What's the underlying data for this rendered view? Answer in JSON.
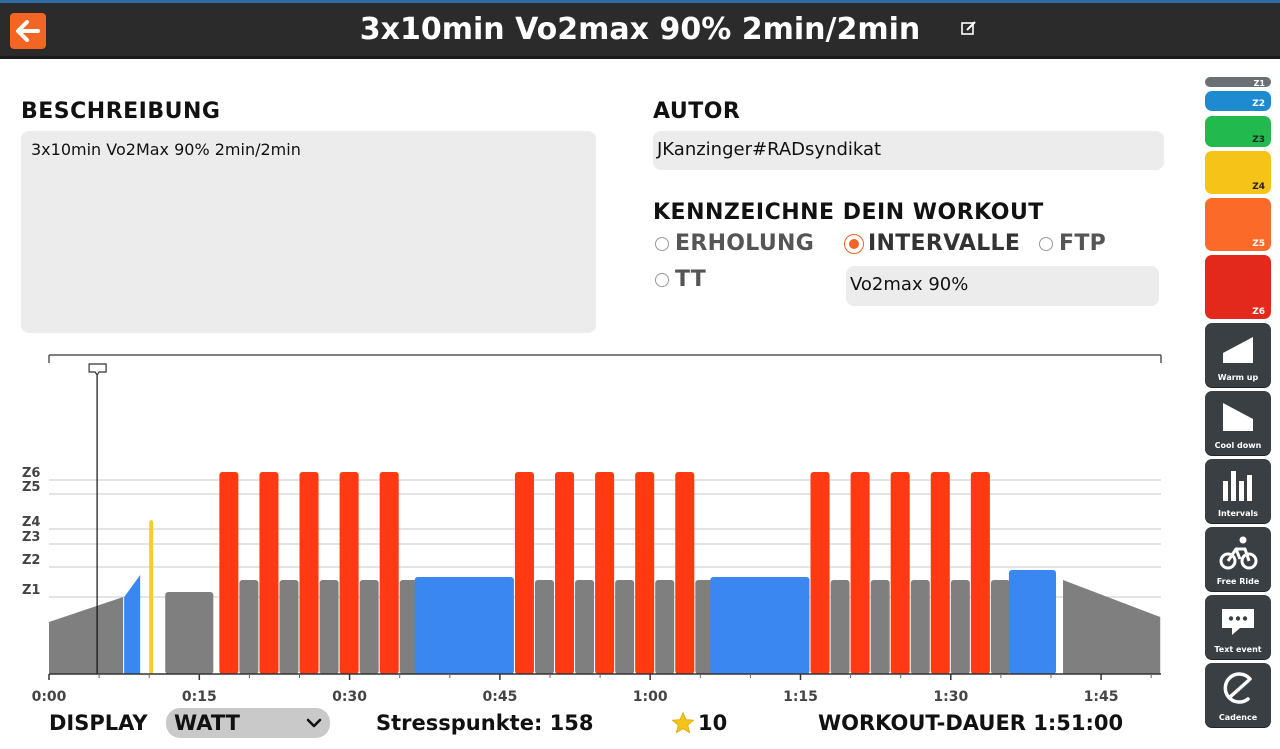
{
  "header": {
    "title": "3x10min Vo2max 90% 2min/2min",
    "back_icon": "arrow-left-icon",
    "edit_icon": "edit-icon"
  },
  "description": {
    "heading": "BESCHREIBUNG",
    "text": "3x10min Vo2Max 90%  2min/2min"
  },
  "author": {
    "heading": "AUTOR",
    "value": "JKanzinger#RADsyndikat"
  },
  "tag": {
    "heading": "KENNZEICHNE DEIN WORKOUT",
    "options": [
      {
        "label": "ERHOLUNG",
        "selected": false
      },
      {
        "label": "INTERVALLE",
        "selected": true
      },
      {
        "label": "FTP",
        "selected": false
      },
      {
        "label": "TT",
        "selected": false
      }
    ],
    "custom_tag": "Vo2max 90%"
  },
  "chart_data": {
    "type": "bar",
    "x_unit": "minutes",
    "x_ticks": [
      "0:00",
      "0:15",
      "0:30",
      "0:45",
      "1:00",
      "1:15",
      "1:30",
      "1:45"
    ],
    "zone_labels": [
      "Z1",
      "Z2",
      "Z3",
      "Z4",
      "Z5",
      "Z6"
    ],
    "zone_colors": {
      "Z1": "#7f7f7f",
      "Z2": "#3a87f2",
      "Z3": "#2cc44f",
      "Z4": "#f8cc2b",
      "Z5": "#fb6a28",
      "Z6": "#ff3a13"
    },
    "cursor_minutes": 4.8,
    "segments": [
      {
        "kind": "ramp",
        "start": 0,
        "end": 7.5,
        "from_level": 0.5,
        "to_level": 0.75,
        "zone": "Z1"
      },
      {
        "kind": "ramp",
        "start": 7.5,
        "end": 9.2,
        "from_level": 0.75,
        "to_level": 0.97,
        "zone": "Z2"
      },
      {
        "kind": "steady",
        "start": 10,
        "end": 10.5,
        "level": 1.52,
        "zone": "Z4"
      },
      {
        "kind": "steady",
        "start": 11.6,
        "end": 16.5,
        "level": 0.8,
        "zone": "Z1"
      },
      {
        "kind": "interval_set",
        "start": 17,
        "reps": 5,
        "on_min": 2,
        "off_min": 2,
        "on_level": 2.0,
        "off_level": 0.92,
        "on_zone": "Z6",
        "off_zone": "Z1"
      },
      {
        "kind": "steady",
        "start": 36.5,
        "end": 46.5,
        "level": 0.95,
        "zone": "Z2"
      },
      {
        "kind": "interval_set",
        "start": 46.5,
        "reps": 5,
        "on_min": 2,
        "off_min": 2,
        "on_level": 2.0,
        "off_level": 0.92,
        "on_zone": "Z6",
        "off_zone": "Z1"
      },
      {
        "kind": "steady",
        "start": 66,
        "end": 76,
        "level": 0.95,
        "zone": "Z2"
      },
      {
        "kind": "interval_set",
        "start": 76,
        "reps": 5,
        "on_min": 2,
        "off_min": 2,
        "on_level": 2.0,
        "off_level": 0.92,
        "on_zone": "Z6",
        "off_zone": "Z1"
      },
      {
        "kind": "steady",
        "start": 95.8,
        "end": 100.6,
        "level": 1.02,
        "zone": "Z2"
      },
      {
        "kind": "ramp",
        "start": 101.2,
        "end": 111,
        "from_level": 0.92,
        "to_level": 0.55,
        "zone": "Z1"
      }
    ]
  },
  "footer": {
    "display_label": "DISPLAY",
    "display_value": "WATT",
    "stress_label": "Stresspunkte: 158",
    "star_value": "10",
    "duration_label": "WORKOUT-DAUER 1:51:00"
  },
  "toolbox": {
    "zones": [
      {
        "label": "Z1",
        "color": "#6b7075"
      },
      {
        "label": "Z2",
        "color": "#1e8bd1"
      },
      {
        "label": "Z3",
        "color": "#22b94f"
      },
      {
        "label": "Z4",
        "color": "#f6c318"
      },
      {
        "label": "Z5",
        "color": "#fb6a28"
      },
      {
        "label": "Z6",
        "color": "#e2291b"
      }
    ],
    "tools": [
      {
        "label": "Warm up",
        "icon": "warm-up-icon"
      },
      {
        "label": "Cool down",
        "icon": "cool-down-icon"
      },
      {
        "label": "Intervals",
        "icon": "intervals-icon"
      },
      {
        "label": "Free Ride",
        "icon": "cyclist-icon"
      },
      {
        "label": "Text event",
        "icon": "speech-bubble-icon"
      },
      {
        "label": "Cadence",
        "icon": "cadence-icon"
      }
    ]
  }
}
